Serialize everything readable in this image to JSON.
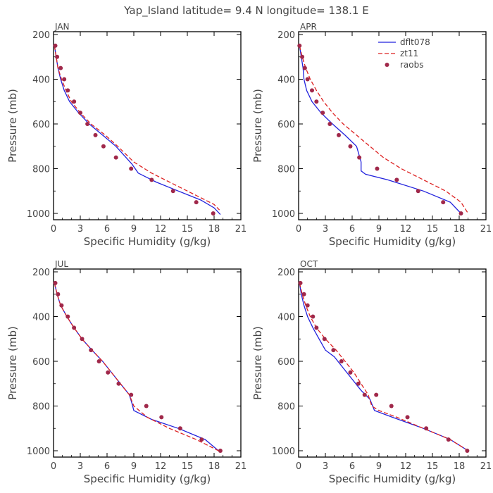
{
  "title": "Yap_Island  latitude= 9.4 N longitude= 138.1 E",
  "colors": {
    "dflt078": "#2222dd",
    "zt11": "#dd2222",
    "raobs": "#a0284a",
    "axis": "#000000",
    "text": "#444444"
  },
  "legend": {
    "placement": "top-right of APR panel",
    "entries": [
      {
        "label": "dflt078",
        "style": "solid"
      },
      {
        "label": "zt11",
        "style": "dashed"
      },
      {
        "label": "raobs",
        "style": "dots"
      }
    ]
  },
  "chart_data": [
    {
      "type": "line",
      "panel": "JAN",
      "xlabel": "Specific Humidity (g/kg)",
      "ylabel": "Pressure (mb)",
      "xlim": [
        0,
        21
      ],
      "ylim": [
        200,
        1020
      ],
      "xticks": [
        "0",
        "3",
        "6",
        "9",
        "12",
        "15",
        "18",
        "21"
      ],
      "yticks": [
        "200",
        "400",
        "600",
        "800",
        "1000"
      ],
      "series": [
        {
          "name": "dflt078",
          "x": [
            0.1,
            0.3,
            0.5,
            0.8,
            1.2,
            1.8,
            2.8,
            4.0,
            5.5,
            7.0,
            8.8,
            9.5,
            11.5,
            14.0,
            16.5,
            18.0,
            18.7
          ],
          "y": [
            250,
            300,
            350,
            400,
            450,
            500,
            550,
            600,
            650,
            700,
            780,
            820,
            860,
            900,
            940,
            975,
            1005
          ]
        },
        {
          "name": "zt11",
          "x": [
            0.1,
            0.3,
            0.5,
            0.9,
            1.4,
            2.0,
            3.0,
            4.2,
            5.8,
            7.2,
            9.0,
            11.0,
            13.5,
            16.0,
            18.0,
            18.6
          ],
          "y": [
            250,
            300,
            350,
            400,
            450,
            500,
            550,
            600,
            650,
            700,
            770,
            820,
            870,
            920,
            960,
            985
          ]
        },
        {
          "name": "raobs",
          "x": [
            0.2,
            0.4,
            0.8,
            1.2,
            1.6,
            2.3,
            3.0,
            3.8,
            4.7,
            5.6,
            7.0,
            8.7,
            11.0,
            13.4,
            16.0,
            17.9
          ],
          "y": [
            250,
            300,
            350,
            400,
            450,
            500,
            550,
            600,
            650,
            700,
            750,
            800,
            850,
            900,
            950,
            1000
          ]
        }
      ]
    },
    {
      "type": "line",
      "panel": "APR",
      "xlabel": "Specific Humidity (g/kg)",
      "ylabel": "Pressure (mb)",
      "xlim": [
        0,
        21
      ],
      "ylim": [
        200,
        1020
      ],
      "xticks": [
        "0",
        "3",
        "6",
        "9",
        "12",
        "15",
        "18",
        "21"
      ],
      "yticks": [
        "200",
        "400",
        "600",
        "800",
        "1000"
      ],
      "series": [
        {
          "name": "dflt078",
          "x": [
            0.1,
            0.3,
            0.5,
            0.6,
            0.9,
            1.5,
            2.5,
            3.8,
            5.2,
            6.5,
            7.0,
            7.0,
            7.5,
            10.0,
            14.0,
            17.0,
            18.2
          ],
          "y": [
            250,
            300,
            350,
            400,
            450,
            500,
            550,
            600,
            650,
            700,
            770,
            810,
            825,
            850,
            900,
            950,
            1000
          ]
        },
        {
          "name": "zt11",
          "x": [
            0.1,
            0.4,
            0.8,
            1.3,
            2.0,
            2.8,
            3.8,
            5.0,
            6.5,
            8.0,
            9.5,
            11.5,
            14.0,
            16.5,
            18.2,
            19.0
          ],
          "y": [
            250,
            300,
            350,
            400,
            450,
            500,
            550,
            600,
            650,
            700,
            750,
            800,
            850,
            900,
            950,
            1000
          ]
        },
        {
          "name": "raobs",
          "x": [
            0.1,
            0.4,
            0.7,
            1.0,
            1.5,
            2.0,
            2.7,
            3.5,
            4.5,
            5.8,
            6.8,
            8.8,
            11.0,
            13.4,
            16.2,
            18.2
          ],
          "y": [
            250,
            300,
            350,
            400,
            450,
            500,
            550,
            600,
            650,
            700,
            750,
            800,
            850,
            900,
            950,
            1000
          ]
        }
      ]
    },
    {
      "type": "line",
      "panel": "JUL",
      "xlabel": "Specific Humidity (g/kg)",
      "ylabel": "Pressure (mb)",
      "xlim": [
        0,
        21
      ],
      "ylim": [
        200,
        1020
      ],
      "xticks": [
        "0",
        "3",
        "6",
        "9",
        "12",
        "15",
        "18",
        "21"
      ],
      "yticks": [
        "200",
        "400",
        "600",
        "800",
        "1000"
      ],
      "series": [
        {
          "name": "dflt078",
          "x": [
            0.1,
            0.4,
            0.8,
            1.5,
            2.3,
            3.2,
            4.3,
            5.5,
            6.5,
            7.5,
            8.5,
            8.8,
            9.0,
            11.0,
            14.0,
            17.0,
            18.5
          ],
          "y": [
            250,
            300,
            350,
            400,
            450,
            500,
            550,
            600,
            650,
            700,
            750,
            790,
            820,
            860,
            900,
            950,
            1000
          ]
        },
        {
          "name": "zt11",
          "x": [
            0.1,
            0.4,
            0.8,
            1.5,
            2.3,
            3.2,
            4.3,
            5.5,
            6.5,
            7.5,
            8.5,
            9.0,
            10.5,
            13.0,
            16.0,
            18.5
          ],
          "y": [
            250,
            300,
            350,
            400,
            450,
            500,
            550,
            600,
            650,
            700,
            750,
            800,
            850,
            900,
            950,
            1000
          ]
        },
        {
          "name": "raobs",
          "x": [
            0.2,
            0.5,
            0.9,
            1.6,
            2.3,
            3.2,
            4.2,
            5.1,
            6.1,
            7.3,
            8.7,
            10.4,
            12.1,
            14.2,
            16.6,
            18.7
          ],
          "y": [
            250,
            300,
            350,
            400,
            450,
            500,
            550,
            600,
            650,
            700,
            750,
            800,
            850,
            900,
            950,
            1000
          ]
        }
      ]
    },
    {
      "type": "line",
      "panel": "OCT",
      "xlabel": "Specific Humidity (g/kg)",
      "ylabel": "Pressure (mb)",
      "xlim": [
        0,
        21
      ],
      "ylim": [
        200,
        1020
      ],
      "xticks": [
        "0",
        "3",
        "6",
        "9",
        "12",
        "15",
        "18",
        "21"
      ],
      "yticks": [
        "200",
        "400",
        "600",
        "800",
        "1000"
      ],
      "series": [
        {
          "name": "dflt078",
          "x": [
            0.1,
            0.3,
            0.6,
            1.0,
            1.6,
            2.3,
            3.0,
            4.0,
            5.0,
            6.0,
            7.0,
            8.0,
            8.3,
            8.5,
            10.5,
            14.0,
            17.0,
            19.0
          ],
          "y": [
            250,
            300,
            350,
            400,
            450,
            500,
            550,
            580,
            630,
            680,
            730,
            770,
            800,
            820,
            850,
            900,
            950,
            1000
          ]
        },
        {
          "name": "zt11",
          "x": [
            0.1,
            0.4,
            0.8,
            1.3,
            2.0,
            3.0,
            4.2,
            5.2,
            6.2,
            7.0,
            7.8,
            8.2,
            9.0,
            11.0,
            14.0,
            17.0,
            19.0
          ],
          "y": [
            250,
            300,
            350,
            400,
            450,
            500,
            550,
            600,
            650,
            700,
            750,
            800,
            820,
            850,
            900,
            950,
            1000
          ]
        },
        {
          "name": "raobs",
          "x": [
            0.2,
            0.6,
            1.0,
            1.6,
            2.0,
            2.9,
            3.9,
            4.8,
            5.8,
            6.7,
            7.4,
            8.7,
            10.4,
            12.2,
            14.3,
            16.8,
            18.9
          ],
          "y": [
            250,
            300,
            350,
            400,
            450,
            500,
            550,
            600,
            650,
            700,
            750,
            750,
            800,
            850,
            900,
            950,
            1000
          ]
        }
      ]
    }
  ]
}
